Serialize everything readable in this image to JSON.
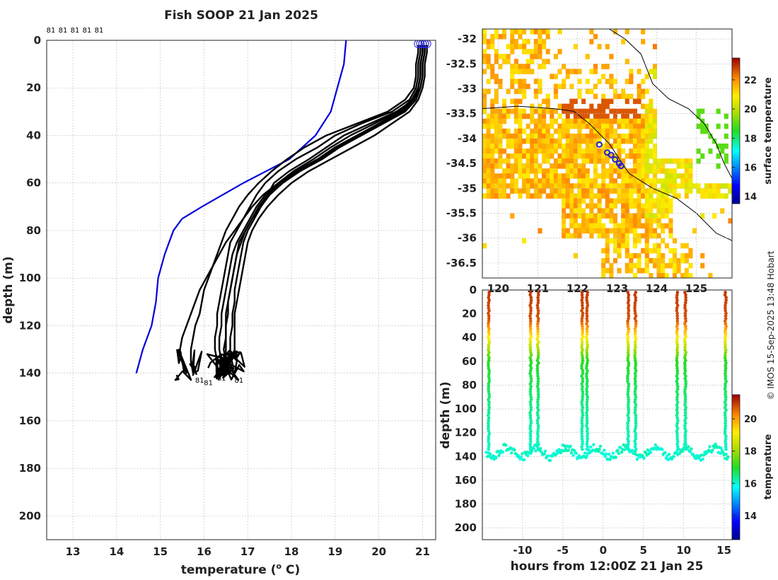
{
  "title": "Fish SOOP 21 Jan 2025",
  "credit": "© IMOS 15-Sep-2025 13:48 Hobart",
  "colors": {
    "profile": "#000000",
    "climatology": "#0000dd",
    "marker": "#2020dd",
    "coast": "#000000",
    "grid": "#bbbbbb"
  },
  "chart_data": [
    {
      "type": "line",
      "name": "profiles",
      "title": "Fish SOOP 21 Jan 2025",
      "xlabel": "temperature (",
      "xlabel_sup": "o",
      "xlabel_tail": " C)",
      "ylabel": "depth (m)",
      "xlim": [
        12.4,
        21.3
      ],
      "ylim": [
        210,
        0
      ],
      "xticks": [
        13,
        14,
        15,
        16,
        17,
        18,
        19,
        20,
        21
      ],
      "yticks": [
        0,
        20,
        40,
        60,
        80,
        100,
        120,
        140,
        160,
        180,
        200
      ],
      "top_labels": [
        "81",
        "81",
        "81",
        "81",
        "81"
      ],
      "bottom_labels": [
        {
          "text": "81",
          "x": 15.9,
          "y": 144
        },
        {
          "text": "81",
          "x": 16.1,
          "y": 145
        },
        {
          "text": "81",
          "x": 16.4,
          "y": 143
        },
        {
          "text": "81",
          "x": 16.8,
          "y": 144
        }
      ],
      "climatology": {
        "t": [
          19.25,
          19.2,
          19.05,
          18.9,
          18.55,
          17.95,
          16.9,
          15.95,
          15.5,
          15.3,
          15.1,
          14.95,
          14.9,
          14.8,
          14.7,
          14.6,
          14.45
        ],
        "depth": [
          0,
          10,
          20,
          30,
          40,
          50,
          60,
          70,
          75,
          80,
          90,
          100,
          110,
          120,
          125,
          130,
          140
        ]
      },
      "profile_depths": [
        2,
        5,
        10,
        15,
        20,
        25,
        30,
        35,
        40,
        45,
        50,
        55,
        60,
        65,
        70,
        75,
        80,
        85,
        90,
        95,
        100,
        105,
        110,
        115,
        120,
        125,
        130,
        135,
        140
      ],
      "profiles": [
        [
          21.0,
          21.0,
          20.95,
          20.95,
          20.9,
          20.8,
          20.4,
          19.8,
          19.2,
          18.8,
          18.4,
          17.95,
          17.6,
          17.45,
          17.3,
          17.1,
          16.95,
          16.8,
          16.75,
          16.7,
          16.65,
          16.6,
          16.55,
          16.55,
          16.5,
          16.5,
          16.5,
          16.5,
          16.55
        ],
        [
          21.05,
          21.05,
          21.0,
          21.0,
          20.95,
          20.85,
          20.6,
          20.1,
          19.6,
          19.1,
          18.7,
          18.2,
          17.8,
          17.5,
          17.3,
          17.15,
          17.0,
          16.9,
          16.85,
          16.8,
          16.75,
          16.7,
          16.7,
          16.65,
          16.65,
          16.6,
          16.6,
          16.6,
          16.6
        ],
        [
          20.95,
          20.95,
          20.9,
          20.9,
          20.85,
          20.7,
          20.3,
          19.6,
          19.0,
          18.6,
          18.1,
          17.7,
          17.4,
          17.2,
          17.05,
          16.9,
          16.75,
          16.6,
          16.55,
          16.5,
          16.45,
          16.4,
          16.35,
          16.3,
          16.3,
          16.25,
          16.25,
          16.3,
          16.3
        ],
        [
          21.1,
          21.1,
          21.05,
          21.05,
          21.0,
          20.9,
          20.7,
          20.3,
          19.9,
          19.4,
          18.9,
          18.4,
          18.0,
          17.7,
          17.45,
          17.25,
          17.1,
          17.0,
          16.95,
          16.9,
          16.85,
          16.8,
          16.75,
          16.7,
          16.7,
          16.7,
          16.7,
          16.75,
          16.7
        ],
        [
          20.9,
          20.9,
          20.85,
          20.85,
          20.8,
          20.6,
          20.2,
          19.5,
          18.8,
          18.3,
          17.9,
          17.55,
          17.25,
          17.0,
          16.8,
          16.65,
          16.5,
          16.4,
          16.3,
          16.2,
          16.1,
          16.0,
          15.95,
          15.9,
          15.8,
          15.75,
          15.7,
          15.7,
          15.75
        ],
        [
          21.0,
          21.0,
          20.95,
          20.95,
          20.9,
          20.75,
          20.45,
          19.9,
          19.35,
          18.9,
          18.5,
          18.05,
          17.7,
          17.4,
          17.2,
          17.05,
          16.9,
          16.75,
          16.65,
          16.6,
          16.55,
          16.5,
          16.45,
          16.4,
          16.4,
          16.35,
          16.35,
          16.4,
          16.45
        ],
        [
          21.05,
          21.05,
          21.0,
          21.0,
          20.95,
          20.8,
          20.5,
          20.0,
          19.5,
          19.0,
          18.6,
          18.1,
          17.7,
          17.35,
          17.1,
          16.9,
          16.7,
          16.5,
          16.35,
          16.2,
          16.05,
          15.9,
          15.8,
          15.7,
          15.6,
          15.5,
          15.45,
          15.5,
          15.55
        ],
        [
          21.0,
          21.0,
          20.95,
          20.95,
          20.9,
          20.8,
          20.55,
          20.05,
          19.55,
          19.05,
          18.65,
          18.15,
          17.75,
          17.45,
          17.25,
          17.1,
          16.95,
          16.85,
          16.75,
          16.7,
          16.65,
          16.6,
          16.55,
          16.5,
          16.5,
          16.5,
          16.45,
          16.5,
          16.5
        ]
      ]
    },
    {
      "type": "heatmap",
      "name": "sst_map",
      "xlim": [
        119.6,
        125.9
      ],
      "ylim": [
        -36.8,
        -31.8
      ],
      "xticks": [
        120,
        121,
        122,
        123,
        124,
        125
      ],
      "xtick_labels": [
        "120",
        "121",
        "122",
        "123",
        "124",
        "125"
      ],
      "yticks": [
        -32,
        -32.5,
        -33,
        -33.5,
        -34,
        -34.5,
        -35,
        -35.5,
        -36,
        -36.5
      ],
      "colorbar": {
        "label": "surface temperature",
        "ticks": [
          14,
          16,
          18,
          20,
          22
        ],
        "range": [
          13.5,
          23.5
        ]
      },
      "track": {
        "lon": [
          122.55,
          122.75,
          122.85,
          122.95,
          123.05,
          123.1
        ],
        "lat": [
          -34.12,
          -34.28,
          -34.33,
          -34.42,
          -34.5,
          -34.55
        ]
      }
    },
    {
      "type": "scatter",
      "name": "section",
      "xlabel": "hours from 12:00Z 21 Jan 25",
      "ylabel": "depth (m)",
      "xlim": [
        -15,
        16
      ],
      "ylim": [
        210,
        0
      ],
      "xticks": [
        -10,
        -5,
        0,
        5,
        10,
        15
      ],
      "yticks": [
        0,
        20,
        40,
        60,
        80,
        100,
        120,
        140,
        160,
        180,
        200
      ],
      "colorbar": {
        "label": "temperature",
        "ticks": [
          14,
          16,
          18,
          20
        ],
        "range": [
          12.5,
          21.5
        ]
      },
      "surfacings": [
        -14.2,
        -9.0,
        -8.1,
        -2.6,
        -2.0,
        3.1,
        4.0,
        9.2,
        10.2,
        15.2
      ],
      "bottom_depth_range": [
        130,
        143
      ]
    }
  ]
}
